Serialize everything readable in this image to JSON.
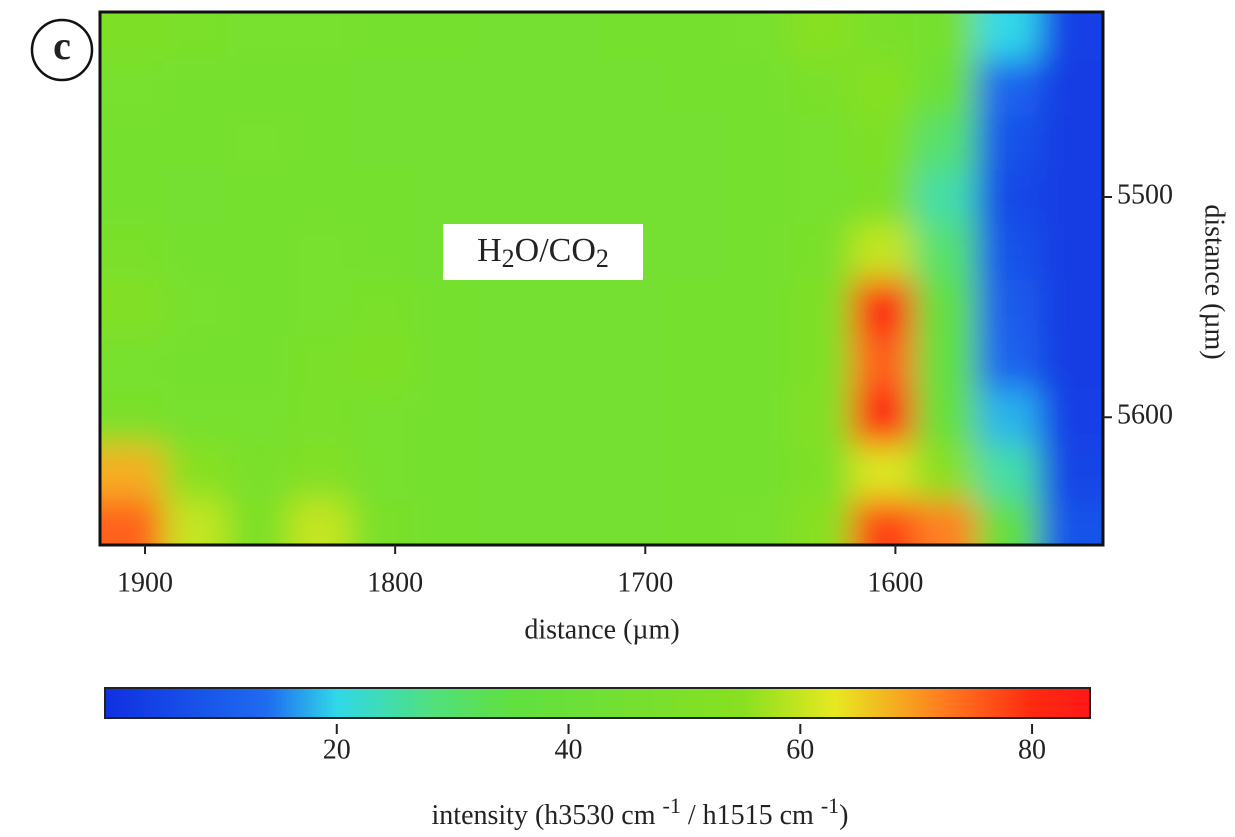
{
  "chart_data": {
    "type": "heatmap",
    "panel_label": "c",
    "annotation": [
      "H",
      "2",
      "O/CO",
      "2"
    ],
    "x_label": "distance (µm)",
    "y_label": "distance (µm)",
    "colorbar_label": [
      "intensity (h3530 cm ",
      "-1",
      " / h1515 cm ",
      "-1",
      ")"
    ],
    "x": [
      1905,
      1880,
      1855,
      1830,
      1805,
      1780,
      1755,
      1730,
      1705,
      1680,
      1655,
      1630,
      1605,
      1580,
      1555,
      1530
    ],
    "y": [
      5425,
      5450,
      5475,
      5500,
      5525,
      5550,
      5575,
      5600,
      5625,
      5650
    ],
    "z": [
      [
        50,
        48,
        47,
        47,
        46,
        46,
        45,
        45,
        46,
        46,
        47,
        55,
        48,
        46,
        20,
        4
      ],
      [
        47,
        46,
        46,
        46,
        45,
        45,
        45,
        45,
        45,
        46,
        46,
        48,
        54,
        40,
        12,
        3
      ],
      [
        46,
        46,
        47,
        46,
        45,
        45,
        45,
        45,
        45,
        45,
        46,
        47,
        50,
        30,
        8,
        3
      ],
      [
        46,
        45,
        46,
        46,
        46,
        45,
        45,
        45,
        45,
        45,
        46,
        47,
        48,
        25,
        6,
        3
      ],
      [
        48,
        46,
        46,
        47,
        46,
        45,
        45,
        45,
        45,
        45,
        46,
        48,
        60,
        30,
        8,
        3
      ],
      [
        52,
        47,
        46,
        47,
        48,
        46,
        45,
        45,
        45,
        46,
        46,
        50,
        84,
        35,
        10,
        3
      ],
      [
        47,
        46,
        46,
        48,
        50,
        46,
        45,
        45,
        45,
        46,
        46,
        50,
        75,
        35,
        12,
        3
      ],
      [
        48,
        47,
        47,
        48,
        47,
        46,
        45,
        45,
        45,
        46,
        46,
        52,
        84,
        38,
        18,
        4
      ],
      [
        68,
        55,
        48,
        52,
        47,
        46,
        45,
        45,
        45,
        46,
        46,
        50,
        62,
        55,
        25,
        5
      ],
      [
        75,
        60,
        50,
        60,
        48,
        46,
        45,
        45,
        45,
        46,
        47,
        55,
        78,
        72,
        35,
        8
      ]
    ],
    "xlim": [
      1918,
      1517
    ],
    "xticks": [
      1900,
      1800,
      1700,
      1600
    ],
    "ylim": [
      5416,
      5658
    ],
    "yticks": [
      5500,
      5600
    ],
    "clim": [
      0,
      85
    ],
    "cticks": [
      20,
      40,
      60,
      80
    ],
    "colorscale": [
      [
        0,
        "#1030e0"
      ],
      [
        14,
        "#1e6cf0"
      ],
      [
        20,
        "#30d8e8"
      ],
      [
        28,
        "#50e080"
      ],
      [
        35,
        "#60e040"
      ],
      [
        55,
        "#88e020"
      ],
      [
        63,
        "#e8e820"
      ],
      [
        72,
        "#ff8020"
      ],
      [
        80,
        "#ff2a10"
      ],
      [
        85,
        "#ff1818"
      ]
    ]
  }
}
